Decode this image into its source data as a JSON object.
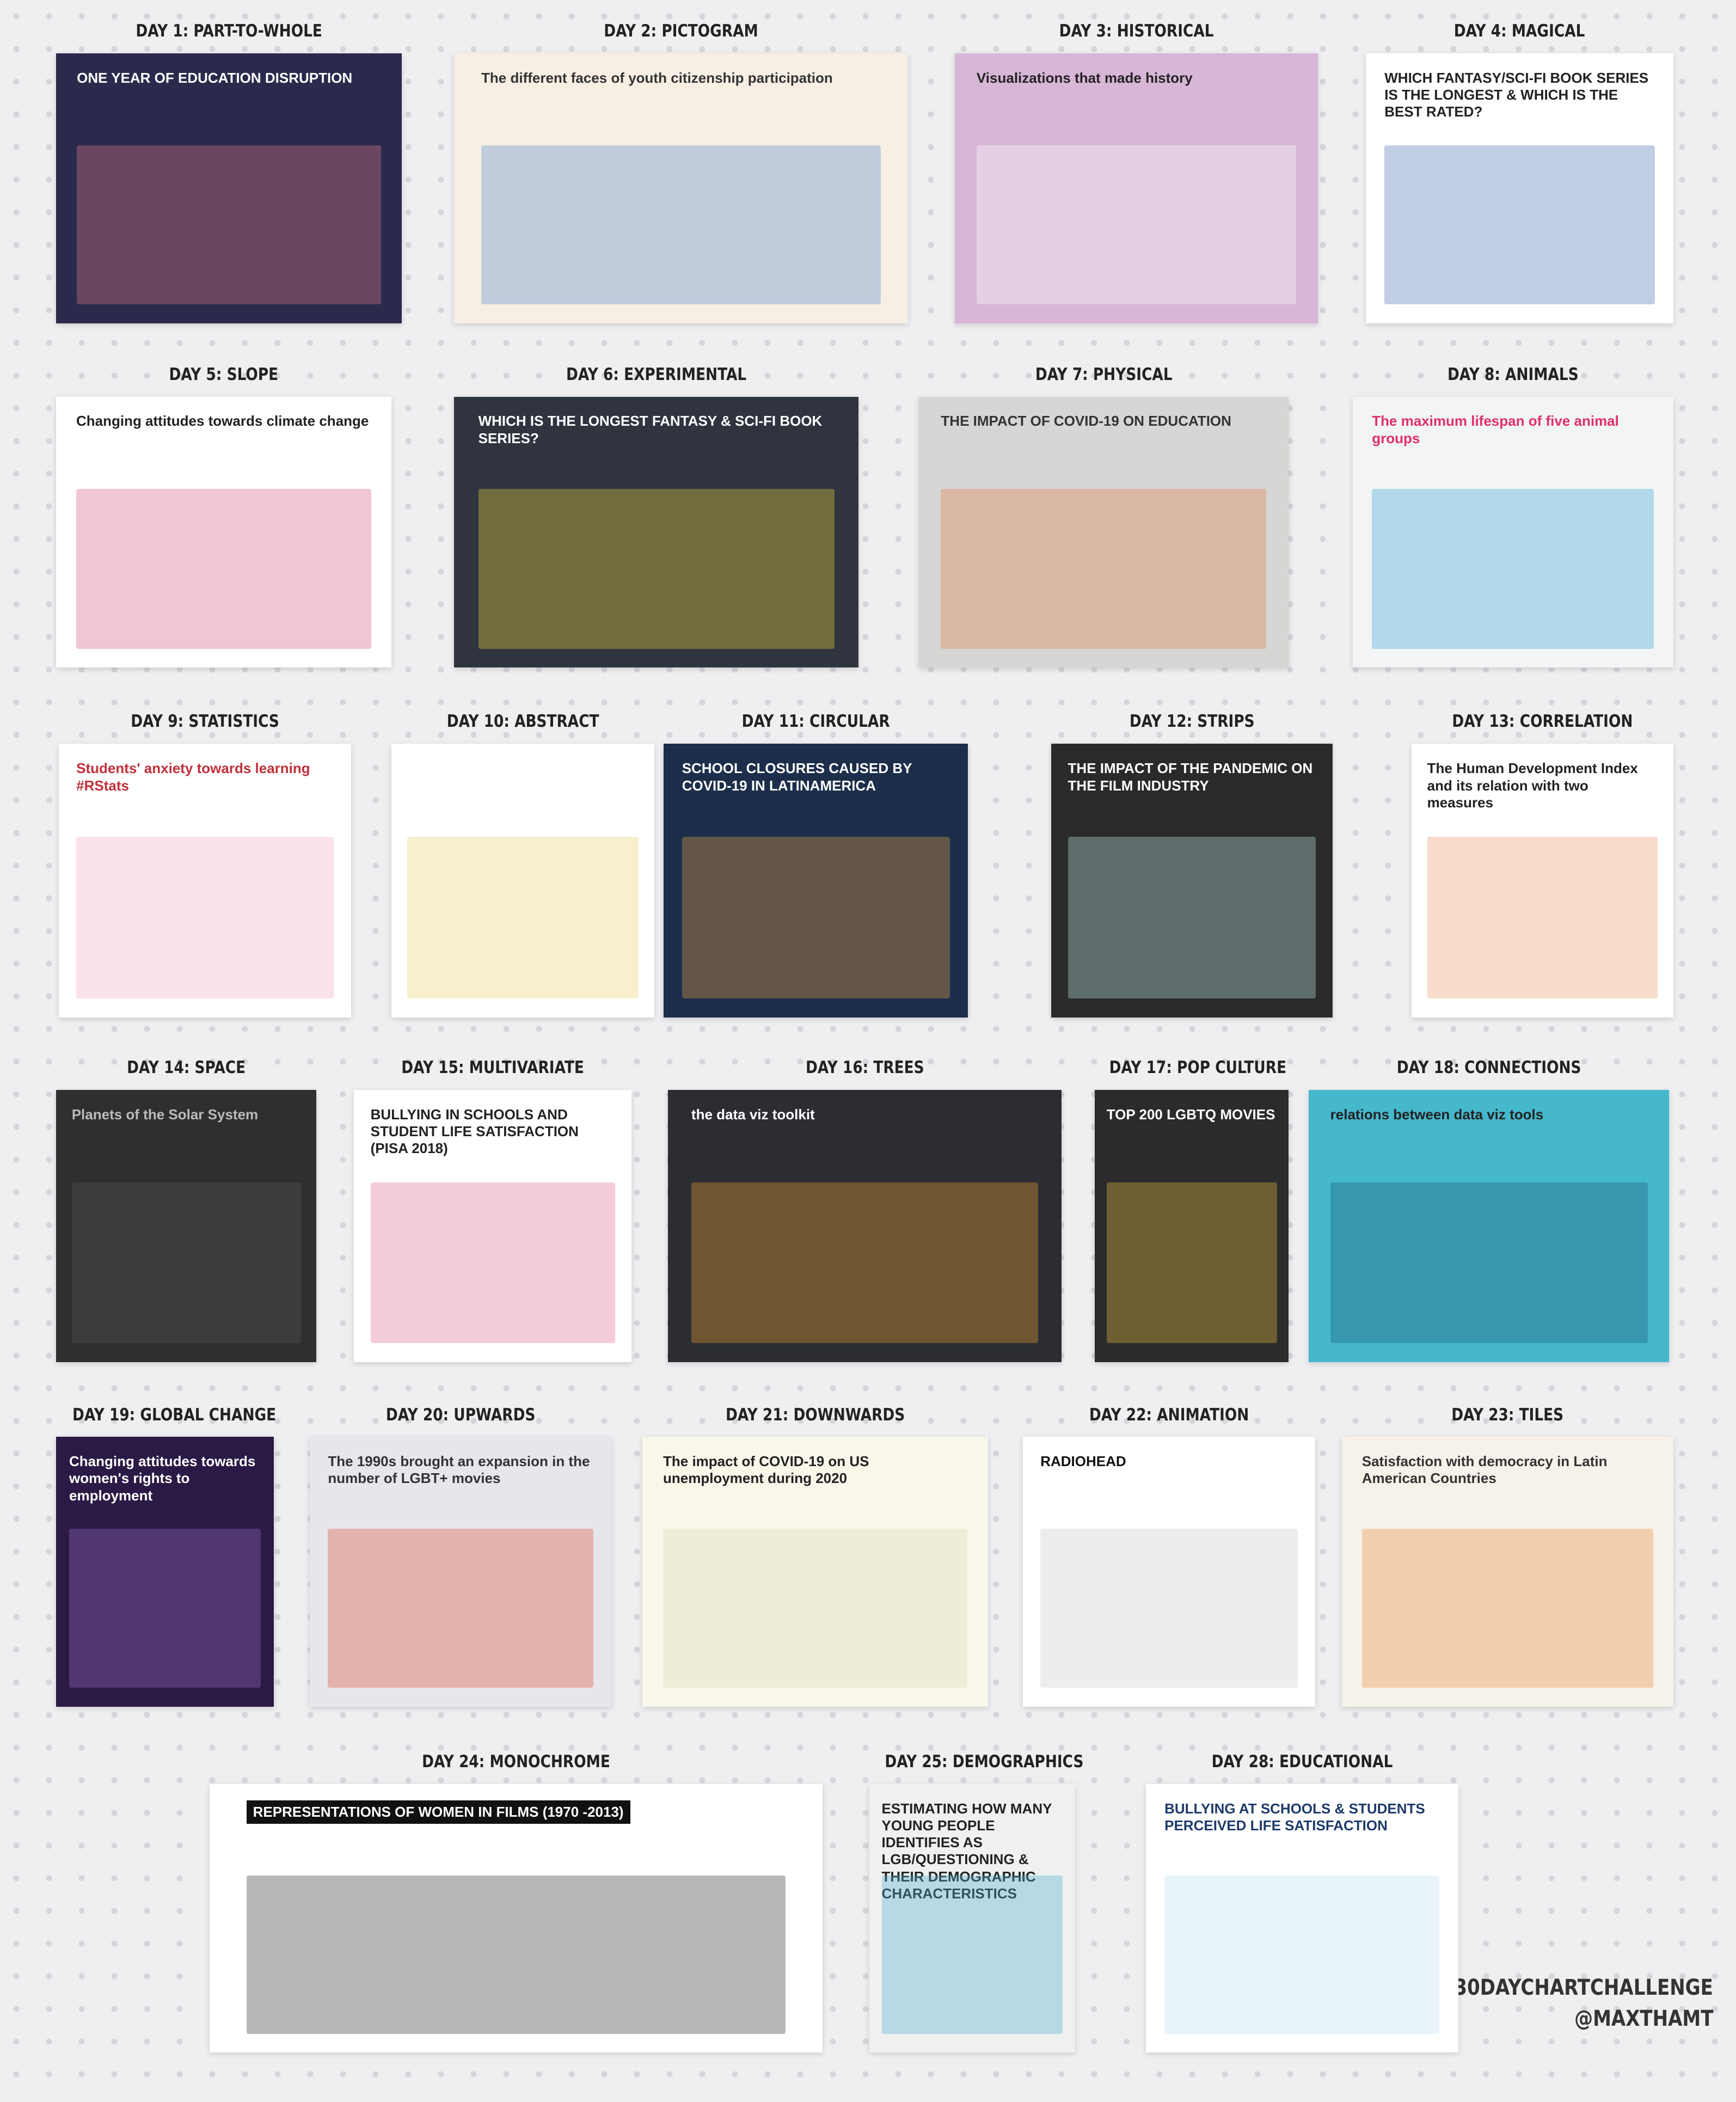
{
  "tiles": [
    {
      "label": "DAY 1: PART-TO-WHOLE",
      "title": "ONE YEAR OF EDUCATION DISRUPTION"
    },
    {
      "label": "DAY 2: PICTOGRAM",
      "title": "The different faces of youth citizenship participation"
    },
    {
      "label": "DAY 3: HISTORICAL",
      "title": "Visualizations that made history"
    },
    {
      "label": "DAY 4: MAGICAL",
      "title": "WHICH FANTASY/SCI-FI BOOK SERIES IS THE LONGEST & WHICH IS THE BEST RATED?"
    },
    {
      "label": "DAY 5: SLOPE",
      "title": "Changing attitudes towards climate change"
    },
    {
      "label": "DAY 6: EXPERIMENTAL",
      "title": "WHICH IS THE LONGEST FANTASY & SCI-FI BOOK SERIES?"
    },
    {
      "label": "DAY 7: PHYSICAL",
      "title": "THE IMPACT OF COVID-19 ON EDUCATION"
    },
    {
      "label": "DAY 8: ANIMALS",
      "title": "The maximum lifespan of five animal groups"
    },
    {
      "label": "DAY 9: STATISTICS",
      "title": "Students' anxiety towards learning #RStats"
    },
    {
      "label": "DAY 10: ABSTRACT"
    },
    {
      "label": "DAY 11: CIRCULAR",
      "title": "SCHOOL CLOSURES CAUSED BY COVID-19 IN LATINAMERICA"
    },
    {
      "label": "DAY 12: STRIPS",
      "title": "THE IMPACT OF THE PANDEMIC ON THE FILM INDUSTRY"
    },
    {
      "label": "DAY 13: CORRELATION",
      "title": "The Human Development Index and its relation with two measures"
    },
    {
      "label": "DAY 14: SPACE",
      "title": "Planets of the Solar System"
    },
    {
      "label": "DAY 15: MULTIVARIATE",
      "title": "BULLYING IN SCHOOLS AND STUDENT LIFE SATISFACTION (PISA 2018)"
    },
    {
      "label": "DAY 16: TREES",
      "title": "the data viz toolkit"
    },
    {
      "label": "DAY 17: POP CULTURE",
      "title": "TOP 200 LGBTQ MOVIES"
    },
    {
      "label": "DAY 18: CONNECTIONS",
      "title": "relations between data viz tools"
    },
    {
      "label": "DAY 19: GLOBAL CHANGE",
      "title": "Changing attitudes towards women's rights to employment"
    },
    {
      "label": "DAY 20: UPWARDS",
      "title": "The 1990s brought an expansion in the number of LGBT+ movies"
    },
    {
      "label": "DAY 21: DOWNWARDS",
      "title": "The impact of COVID-19 on US unemployment during 2020"
    },
    {
      "label": "DAY 22: ANIMATION",
      "title": "RADIOHEAD"
    },
    {
      "label": "DAY 23: TILES",
      "title": "Satisfaction with democracy in Latin American Countries"
    },
    {
      "label": "DAY 24: MONOCHROME",
      "title": "REPRESENTATIONS OF WOMEN IN FILMS (1970 -2013)"
    },
    {
      "label": "DAY 25: DEMOGRAPHICS",
      "title": "ESTIMATING HOW MANY YOUNG PEOPLE IDENTIFIES AS LGB/QUESTIONING & THEIR DEMOGRAPHIC CHARACTERISTICS"
    },
    {
      "label": "DAY 28: EDUCATIONAL",
      "title": "BULLYING AT SCHOOLS & STUDENTS PERCEIVED LIFE SATISFACTION"
    }
  ],
  "footer": [
    "#30DAYCHARTCHALLENGE",
    "@MAXTHAMT"
  ]
}
